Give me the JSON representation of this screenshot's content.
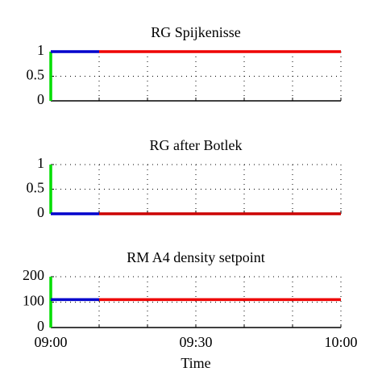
{
  "chart_data": [
    {
      "type": "line",
      "title": "RG Spijkenisse",
      "xlim": [
        "09:00",
        "10:00"
      ],
      "xticks": [
        {
          "value": "09:00",
          "label": null
        },
        {
          "value": "09:10",
          "label": null
        },
        {
          "value": "09:20",
          "label": null
        },
        {
          "value": "09:30",
          "label": null
        },
        {
          "value": "09:40",
          "label": null
        },
        {
          "value": "09:50",
          "label": null
        },
        {
          "value": "10:00",
          "label": null
        }
      ],
      "ylim": [
        0,
        1
      ],
      "yticks": [
        0,
        0.5,
        1
      ],
      "grid": true,
      "series": [
        {
          "color": "#00dd00",
          "x": [
            "09:00",
            "09:00"
          ],
          "values": [
            0,
            1
          ]
        },
        {
          "color": "#0000cc",
          "x": [
            "09:00",
            "09:10"
          ],
          "values": [
            1,
            1
          ]
        },
        {
          "color": "#ee0000",
          "x": [
            "09:10",
            "10:00"
          ],
          "values": [
            1,
            1
          ]
        }
      ]
    },
    {
      "type": "line",
      "title": "RG after Botlek",
      "xlim": [
        "09:00",
        "10:00"
      ],
      "xticks": [
        {
          "value": "09:00",
          "label": null
        },
        {
          "value": "09:10",
          "label": null
        },
        {
          "value": "09:20",
          "label": null
        },
        {
          "value": "09:30",
          "label": null
        },
        {
          "value": "09:40",
          "label": null
        },
        {
          "value": "09:50",
          "label": null
        },
        {
          "value": "10:00",
          "label": null
        }
      ],
      "ylim": [
        0,
        1
      ],
      "yticks": [
        0,
        0.5,
        1
      ],
      "grid": true,
      "series": [
        {
          "color": "#00dd00",
          "x": [
            "09:00",
            "09:00"
          ],
          "values": [
            0,
            1
          ]
        },
        {
          "color": "#0000cc",
          "x": [
            "09:00",
            "09:10"
          ],
          "values": [
            0,
            0
          ]
        },
        {
          "color": "#cc0000",
          "x": [
            "09:10",
            "10:00"
          ],
          "values": [
            0,
            0
          ]
        }
      ]
    },
    {
      "type": "line",
      "title": "RM A4 density setpoint",
      "xlabel": "Time",
      "xlim": [
        "09:00",
        "10:00"
      ],
      "xticks": [
        "09:00",
        {
          "value": "09:10",
          "label": null
        },
        {
          "value": "09:20",
          "label": null
        },
        "09:30",
        {
          "value": "09:40",
          "label": null
        },
        {
          "value": "09:50",
          "label": null
        },
        "10:00"
      ],
      "ylim": [
        0,
        200
      ],
      "yticks": [
        0,
        100,
        200
      ],
      "grid": true,
      "series": [
        {
          "color": "#00dd00",
          "x": [
            "09:00",
            "09:00"
          ],
          "values": [
            0,
            200
          ]
        },
        {
          "color": "#0000cc",
          "x": [
            "09:00",
            "09:10"
          ],
          "values": [
            110,
            110
          ]
        },
        {
          "color": "#ee0000",
          "x": [
            "09:10",
            "10:00"
          ],
          "values": [
            110,
            110
          ]
        }
      ]
    }
  ]
}
